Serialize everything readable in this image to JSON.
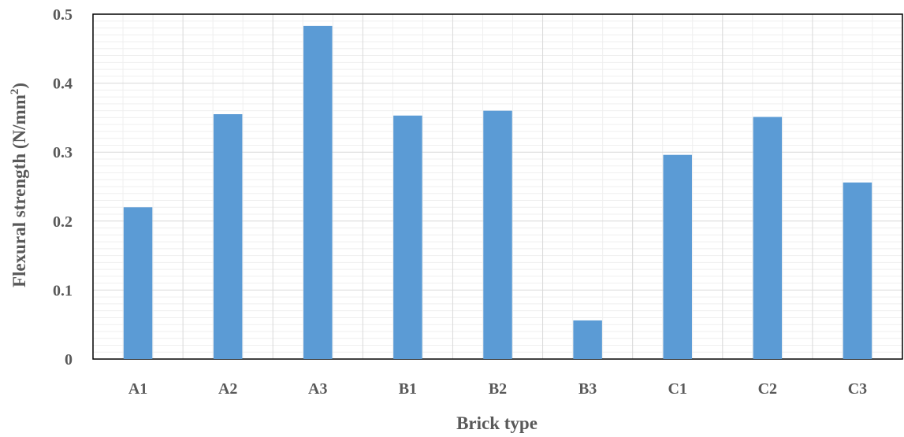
{
  "chart_data": {
    "type": "bar",
    "categories": [
      "A1",
      "A2",
      "A3",
      "B1",
      "B2",
      "B3",
      "C1",
      "C2",
      "C3"
    ],
    "series": [
      {
        "values": [
          0.22,
          0.355,
          0.483,
          0.353,
          0.36,
          0.056,
          0.296,
          0.351,
          0.256
        ]
      }
    ],
    "xlabel": "Brick type",
    "ylabel_main": "Flexural strength (N/mm",
    "ylabel_sup": "2",
    "ylabel_close": ")",
    "ylim": [
      0,
      0.5
    ],
    "yticks": [
      {
        "value": 0,
        "label": "0"
      },
      {
        "value": 0.1,
        "label": "0.1"
      },
      {
        "value": 0.2,
        "label": "0.2"
      },
      {
        "value": 0.3,
        "label": "0.3"
      },
      {
        "value": 0.4,
        "label": "0.4"
      },
      {
        "value": 0.5,
        "label": "0.5"
      }
    ],
    "grid": true,
    "legend": "none",
    "bar_color": "#5B9BD5",
    "grid_color": "#d9d9d9",
    "frame_color": "#000000"
  }
}
